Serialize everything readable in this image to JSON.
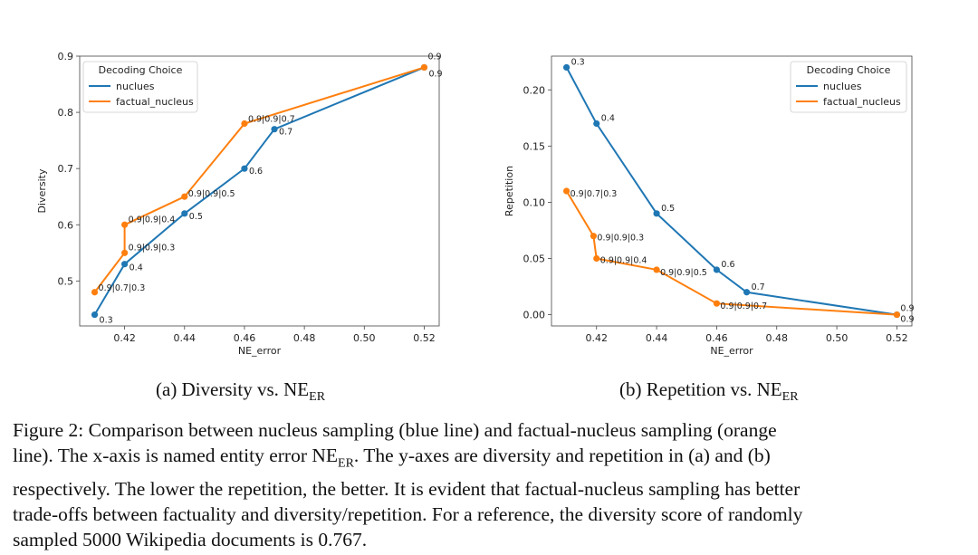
{
  "chart_data": [
    {
      "type": "line",
      "panel": "a",
      "xlabel": "NE_error",
      "ylabel": "Diversity",
      "xlim": [
        0.405,
        0.525
      ],
      "ylim": [
        0.42,
        0.9
      ],
      "xticks": [
        0.42,
        0.44,
        0.46,
        0.48,
        0.5,
        0.52
      ],
      "xtick_labels": [
        "0.42",
        "0.44",
        "0.46",
        "0.48",
        "0.50",
        "0.52"
      ],
      "yticks": [
        0.5,
        0.6,
        0.7,
        0.8,
        0.9
      ],
      "ytick_labels": [
        "0.5",
        "0.6",
        "0.7",
        "0.8",
        "0.9"
      ],
      "legend": {
        "title": "Decoding Choice",
        "position": "top-left"
      },
      "series": [
        {
          "name": "nuclues",
          "color": "#1f77b4",
          "points": [
            {
              "x": 0.41,
              "y": 0.44,
              "label": "0.3"
            },
            {
              "x": 0.42,
              "y": 0.53,
              "label": "0.4"
            },
            {
              "x": 0.44,
              "y": 0.62,
              "label": "0.5"
            },
            {
              "x": 0.46,
              "y": 0.7,
              "label": "0.6"
            },
            {
              "x": 0.47,
              "y": 0.77,
              "label": "0.7"
            },
            {
              "x": 0.52,
              "y": 0.88,
              "label": "0.9"
            }
          ]
        },
        {
          "name": "factual_nucleus",
          "color": "#ff7f0e",
          "points": [
            {
              "x": 0.41,
              "y": 0.48,
              "label": "0.9|0.7|0.3"
            },
            {
              "x": 0.42,
              "y": 0.55,
              "label": "0.9|0.9|0.3"
            },
            {
              "x": 0.42,
              "y": 0.6,
              "label": "0.9|0.9|0.4"
            },
            {
              "x": 0.44,
              "y": 0.65,
              "label": "0.9|0.9|0.5"
            },
            {
              "x": 0.46,
              "y": 0.78,
              "label": "0.9|0.9|0.7"
            },
            {
              "x": 0.52,
              "y": 0.88,
              "label": "0.9"
            }
          ]
        }
      ]
    },
    {
      "type": "line",
      "panel": "b",
      "xlabel": "NE_error",
      "ylabel": "Repetition",
      "xlim": [
        0.405,
        0.525
      ],
      "ylim": [
        -0.01,
        0.23
      ],
      "xticks": [
        0.42,
        0.44,
        0.46,
        0.48,
        0.5,
        0.52
      ],
      "xtick_labels": [
        "0.42",
        "0.44",
        "0.46",
        "0.48",
        "0.50",
        "0.52"
      ],
      "yticks": [
        0.0,
        0.05,
        0.1,
        0.15,
        0.2
      ],
      "ytick_labels": [
        "0.00",
        "0.05",
        "0.10",
        "0.15",
        "0.20"
      ],
      "legend": {
        "title": "Decoding Choice",
        "position": "top-right"
      },
      "series": [
        {
          "name": "nuclues",
          "color": "#1f77b4",
          "points": [
            {
              "x": 0.41,
              "y": 0.22,
              "label": "0.3"
            },
            {
              "x": 0.42,
              "y": 0.17,
              "label": "0.4"
            },
            {
              "x": 0.44,
              "y": 0.09,
              "label": "0.5"
            },
            {
              "x": 0.46,
              "y": 0.04,
              "label": "0.6"
            },
            {
              "x": 0.47,
              "y": 0.02,
              "label": "0.7"
            },
            {
              "x": 0.52,
              "y": 0.0,
              "label": "0.9"
            }
          ]
        },
        {
          "name": "factual_nucleus",
          "color": "#ff7f0e",
          "points": [
            {
              "x": 0.41,
              "y": 0.11,
              "label": "0.9|0.7|0.3"
            },
            {
              "x": 0.419,
              "y": 0.07,
              "label": "0.9|0.9|0.3"
            },
            {
              "x": 0.42,
              "y": 0.05,
              "label": "0.9|0.9|0.4"
            },
            {
              "x": 0.44,
              "y": 0.04,
              "label": "0.9|0.9|0.5"
            },
            {
              "x": 0.46,
              "y": 0.01,
              "label": "0.9|0.9|0.7"
            },
            {
              "x": 0.52,
              "y": 0.0,
              "label": "0.9"
            }
          ]
        }
      ]
    }
  ],
  "captions": {
    "a_prefix": "(a) Diversity vs. NE",
    "a_sub": "ER",
    "b_prefix": "(b) Repetition vs. NE",
    "b_sub": "ER"
  },
  "figure_caption": {
    "line1": "Figure 2: Comparison between nucleus sampling (blue line) and factual-nucleus sampling (orange",
    "line2_pre": "line). The x-axis is named entity error NE",
    "line2_sub": "ER",
    "line2_post": ". The y-axes are diversity and repetition in (a) and (b)",
    "line3": "respectively. The lower the repetition, the better. It is evident that factual-nucleus sampling has better",
    "line4": "trade-offs between factuality and diversity/repetition. For a reference, the diversity score of randomly",
    "line5": "sampled 5000 Wikipedia documents is 0.767."
  }
}
